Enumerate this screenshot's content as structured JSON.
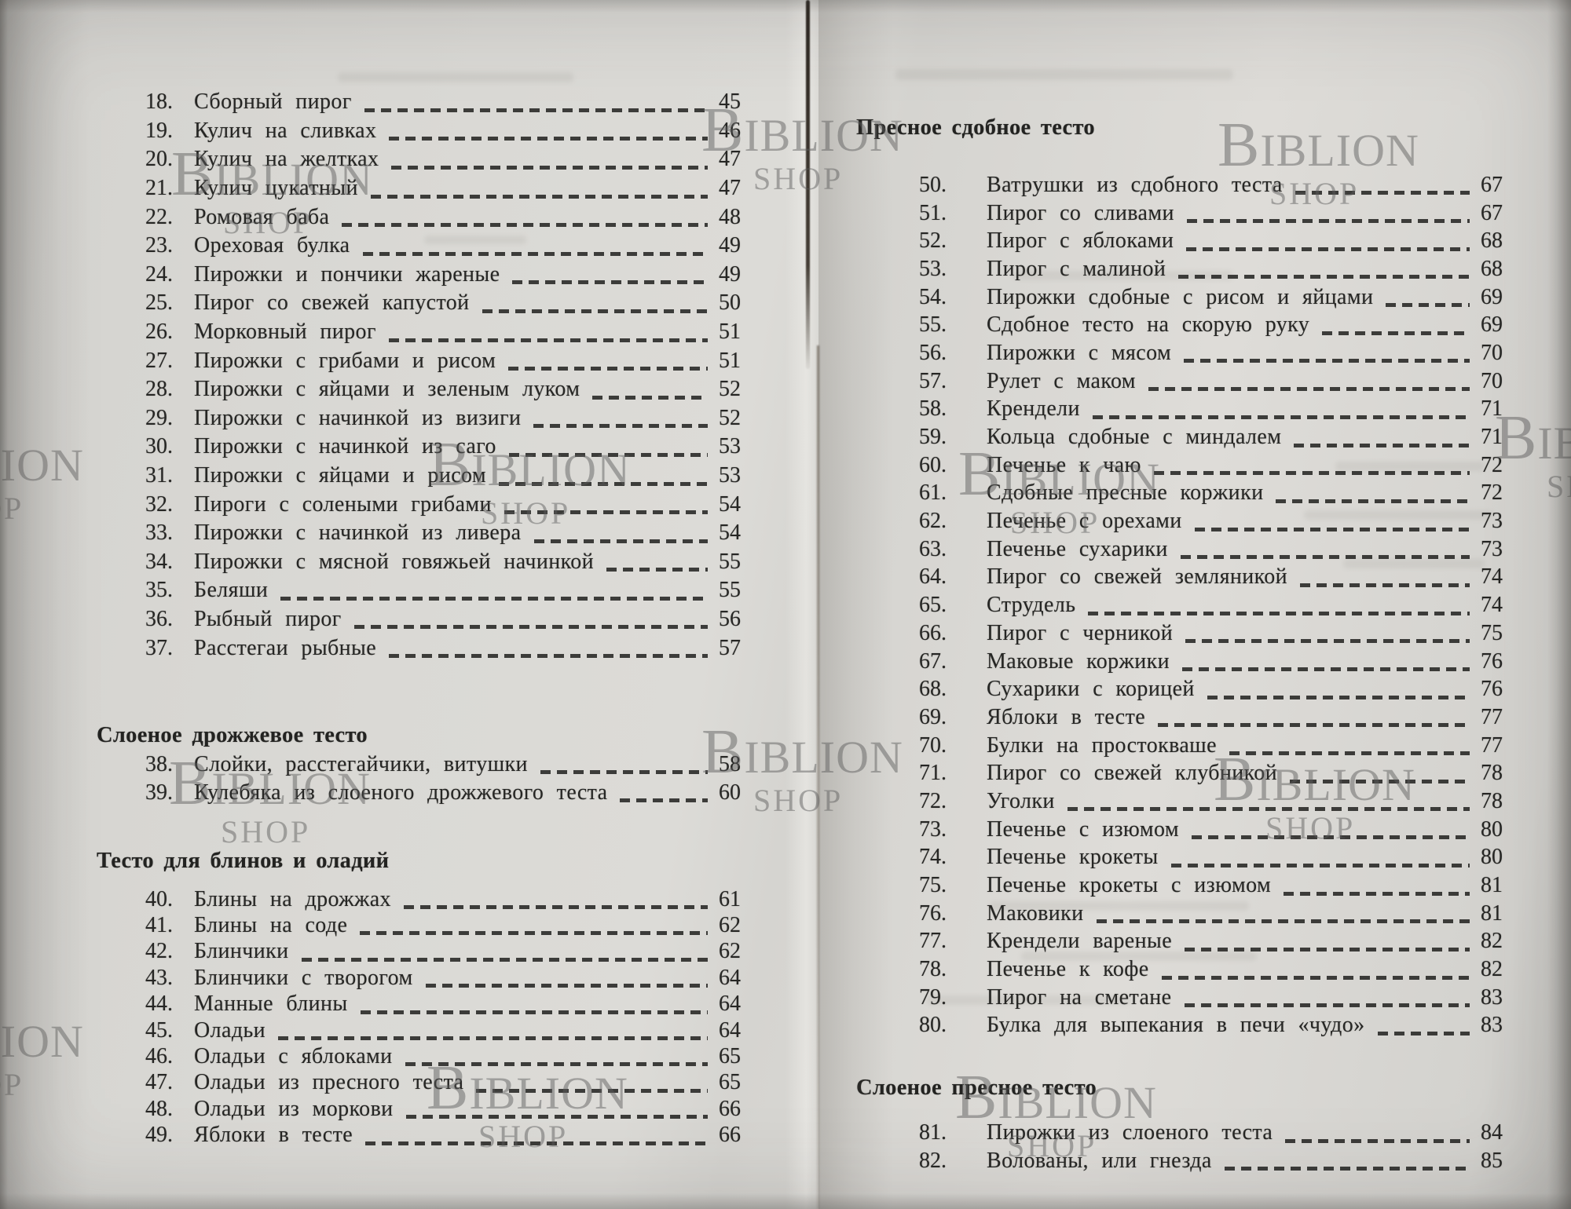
{
  "watermark": {
    "line1": "BIBLION",
    "line2": "SHOP"
  },
  "pages": {
    "left": {
      "sections": [
        {
          "header": "",
          "items": [
            {
              "num": "18.",
              "title": "Сборный пирог",
              "page": "45"
            },
            {
              "num": "19.",
              "title": "Кулич на сливках",
              "page": "46"
            },
            {
              "num": "20.",
              "title": "Кулич на желтках",
              "page": "47"
            },
            {
              "num": "21.",
              "title": "Кулич цукатный",
              "page": "47"
            },
            {
              "num": "22.",
              "title": "Ромовая баба",
              "page": "48"
            },
            {
              "num": "23.",
              "title": "Ореховая булка",
              "page": "49"
            },
            {
              "num": "24.",
              "title": "Пирожки и пончики жареные",
              "page": "49"
            },
            {
              "num": "25.",
              "title": "Пирог со свежей капустой",
              "page": "50"
            },
            {
              "num": "26.",
              "title": "Морковный пирог",
              "page": "51"
            },
            {
              "num": "27.",
              "title": "Пирожки с грибами и рисом",
              "page": "51"
            },
            {
              "num": "28.",
              "title": "Пирожки с яйцами и зеленым луком",
              "page": "52"
            },
            {
              "num": "29.",
              "title": "Пирожки с начинкой из визиги",
              "page": "52"
            },
            {
              "num": "30.",
              "title": "Пирожки с начинкой из саго",
              "page": "53"
            },
            {
              "num": "31.",
              "title": "Пирожки с яйцами и рисом",
              "page": "53"
            },
            {
              "num": "32.",
              "title": "Пироги с солеными грибами",
              "page": "54"
            },
            {
              "num": "33.",
              "title": "Пирожки с начинкой из ливера",
              "page": "54"
            },
            {
              "num": "34.",
              "title": "Пирожки с мясной говяжьей начинкой",
              "page": "55"
            },
            {
              "num": "35.",
              "title": "Беляши",
              "page": "55"
            },
            {
              "num": "36.",
              "title": "Рыбный пирог",
              "page": "56"
            },
            {
              "num": "37.",
              "title": "Расстегаи рыбные",
              "page": "57"
            }
          ]
        },
        {
          "header": "Слоеное дрожжевое тесто",
          "items": [
            {
              "num": "38.",
              "title": "Слойки, расстегайчики, витушки",
              "page": "58"
            },
            {
              "num": "39.",
              "title": "Кулебяка из слоеного дрожжевого теста",
              "page": "60"
            }
          ]
        },
        {
          "header": "Тесто для блинов и оладий",
          "items": [
            {
              "num": "40.",
              "title": "Блины на дрожжах",
              "page": "61"
            },
            {
              "num": "41.",
              "title": "Блины на соде",
              "page": "62"
            },
            {
              "num": "42.",
              "title": "Блинчики",
              "page": "62"
            },
            {
              "num": "43.",
              "title": "Блинчики с творогом",
              "page": "64"
            },
            {
              "num": "44.",
              "title": "Манные блины",
              "page": "64"
            },
            {
              "num": "45.",
              "title": "Оладьи",
              "page": "64"
            },
            {
              "num": "46.",
              "title": "Оладьи с яблоками",
              "page": "65"
            },
            {
              "num": "47.",
              "title": "Оладьи из пресного теста",
              "page": "65"
            },
            {
              "num": "48.",
              "title": "Оладьи из моркови",
              "page": "66"
            },
            {
              "num": "49.",
              "title": "Яблоки в тесте",
              "page": "66"
            }
          ]
        }
      ]
    },
    "right": {
      "sections": [
        {
          "header": "Пресное сдобное тесто",
          "items": [
            {
              "num": "50.",
              "title": "Ватрушки из сдобного теста",
              "page": "67"
            },
            {
              "num": "51.",
              "title": "Пирог со сливами",
              "page": "67"
            },
            {
              "num": "52.",
              "title": "Пирог с яблоками",
              "page": "68"
            },
            {
              "num": "53.",
              "title": "Пирог с малиной",
              "page": "68"
            },
            {
              "num": "54.",
              "title": "Пирожки сдобные с рисом и яйцами",
              "page": "69"
            },
            {
              "num": "55.",
              "title": "Сдобное тесто на скорую руку",
              "page": "69"
            },
            {
              "num": "56.",
              "title": "Пирожки с мясом",
              "page": "70"
            },
            {
              "num": "57.",
              "title": "Рулет с маком",
              "page": "70"
            },
            {
              "num": "58.",
              "title": "Крендели",
              "page": "71"
            },
            {
              "num": "59.",
              "title": "Кольца сдобные с миндалем",
              "page": "71"
            },
            {
              "num": "60.",
              "title": "Печенье к чаю",
              "page": "72"
            },
            {
              "num": "61.",
              "title": "Сдобные пресные коржики",
              "page": "72"
            },
            {
              "num": "62.",
              "title": "Печенье с орехами",
              "page": "73"
            },
            {
              "num": "63.",
              "title": "Печенье сухарики",
              "page": "73"
            },
            {
              "num": "64.",
              "title": "Пирог со свежей земляникой",
              "page": "74"
            },
            {
              "num": "65.",
              "title": "Струдель",
              "page": "74"
            },
            {
              "num": "66.",
              "title": "Пирог с черникой",
              "page": "75"
            },
            {
              "num": "67.",
              "title": "Маковые коржики",
              "page": "76"
            },
            {
              "num": "68.",
              "title": "Сухарики с корицей",
              "page": "76"
            },
            {
              "num": "69.",
              "title": "Яблоки в тесте",
              "page": "77"
            },
            {
              "num": "70.",
              "title": "Булки на простокваше",
              "page": "77"
            },
            {
              "num": "71.",
              "title": "Пирог со свежей клубникой",
              "page": "78"
            },
            {
              "num": "72.",
              "title": "Уголки",
              "page": "78"
            },
            {
              "num": "73.",
              "title": "Печенье с изюмом",
              "page": "80"
            },
            {
              "num": "74.",
              "title": "Печенье крокеты",
              "page": "80"
            },
            {
              "num": "75.",
              "title": "Печенье крокеты с изюмом",
              "page": "81"
            },
            {
              "num": "76.",
              "title": "Маковики",
              "page": "81"
            },
            {
              "num": "77.",
              "title": "Крендели вареные",
              "page": "82"
            },
            {
              "num": "78.",
              "title": "Печенье к кофе",
              "page": "82"
            },
            {
              "num": "79.",
              "title": "Пирог на сметане",
              "page": "83"
            },
            {
              "num": "80.",
              "title": "Булка для выпекания в печи «чудо»",
              "page": "83"
            }
          ]
        },
        {
          "header": "Слоеное пресное тесто",
          "items": [
            {
              "num": "81.",
              "title": "Пирожки из слоеного теста",
              "page": "84"
            },
            {
              "num": "82.",
              "title": "Волованы, или гнезда",
              "page": "85"
            }
          ]
        }
      ]
    }
  }
}
